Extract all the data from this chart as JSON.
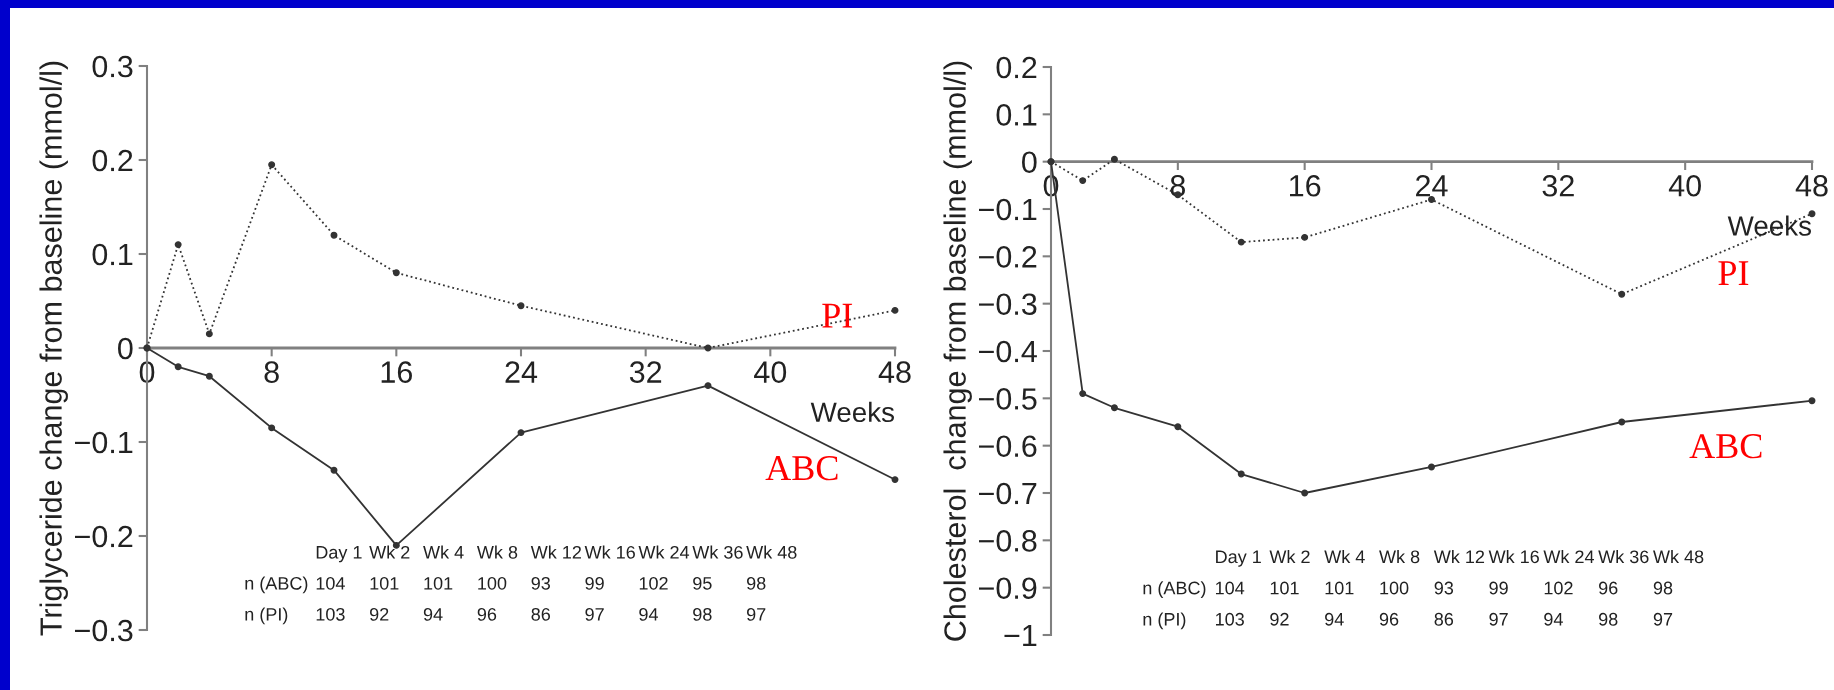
{
  "chart_data": [
    {
      "type": "line",
      "xlabel": "Weeks",
      "ylabel": "Triglyceride change from baseline (mmol/l)",
      "x": [
        0,
        2,
        4,
        8,
        12,
        16,
        24,
        36,
        48
      ],
      "xlim": [
        0,
        48
      ],
      "xticks": [
        0,
        8,
        16,
        24,
        32,
        40,
        48
      ],
      "ylim": [
        -0.3,
        0.3
      ],
      "yticks": [
        {
          "value": -0.3,
          "label": "−0.3"
        },
        {
          "value": -0.2,
          "label": "−0.2"
        },
        {
          "value": -0.1,
          "label": "−0.1"
        },
        0,
        0.1,
        0.2,
        0.3
      ],
      "marker": "circle",
      "grid": false,
      "legend": false,
      "series": [
        {
          "name": "PI",
          "color": "#333333",
          "line_style": "dotted",
          "values": [
            0,
            0.11,
            0.015,
            0.195,
            0.12,
            0.08,
            0.045,
            0,
            0.04
          ]
        },
        {
          "name": "ABC",
          "color": "#333333",
          "line_style": "solid",
          "values": [
            0,
            -0.02,
            -0.03,
            -0.085,
            -0.13,
            -0.21,
            -0.09,
            -0.04,
            -0.14
          ]
        }
      ],
      "annotations": [
        "Day 1",
        "Wk 2",
        "Wk 4",
        "Wk 8",
        "Wk 12",
        "Wk 16",
        "Wk 24",
        "Wk 36",
        "Wk 48",
        "n (ABC)",
        "104",
        "101",
        "101",
        "100",
        "93",
        "99",
        "102",
        "95",
        "98",
        "n (PI)",
        "103",
        "92",
        "94",
        "96",
        "86",
        "97",
        "94",
        "98",
        "97"
      ]
    },
    {
      "type": "line",
      "xlabel": "Weeks",
      "ylabel": "Cholesterol  change from baseline (mmol/l)",
      "x": [
        0,
        2,
        4,
        8,
        12,
        16,
        24,
        36,
        48
      ],
      "xlim": [
        0,
        48
      ],
      "xticks": [
        0,
        8,
        16,
        24,
        32,
        40,
        48
      ],
      "ylim": [
        -1,
        0.2
      ],
      "yticks": [
        {
          "value": -1,
          "label": "−1"
        },
        {
          "value": -0.9,
          "label": "−0.9"
        },
        {
          "value": -0.8,
          "label": "−0.8"
        },
        {
          "value": -0.7,
          "label": "−0.7"
        },
        {
          "value": -0.6,
          "label": "−0.6"
        },
        {
          "value": -0.5,
          "label": "−0.5"
        },
        {
          "value": -0.4,
          "label": "−0.4"
        },
        {
          "value": -0.3,
          "label": "−0.3"
        },
        {
          "value": -0.2,
          "label": "−0.2"
        },
        {
          "value": -0.1,
          "label": "−0.1"
        },
        0,
        0.1,
        0.2
      ],
      "marker": "circle",
      "grid": false,
      "legend": false,
      "series": [
        {
          "name": "PI",
          "color": "#333333",
          "line_style": "dotted",
          "values": [
            0,
            -0.04,
            0.005,
            -0.07,
            -0.17,
            -0.16,
            -0.08,
            -0.28,
            -0.11
          ]
        },
        {
          "name": "ABC",
          "color": "#333333",
          "line_style": "solid",
          "values": [
            0,
            -0.49,
            -0.52,
            -0.56,
            -0.66,
            -0.7,
            -0.645,
            -0.55,
            -0.505
          ]
        }
      ],
      "annotations": [
        "Day 1",
        "Wk 2",
        "Wk 4",
        "Wk 8",
        "Wk 12",
        "Wk 16",
        "Wk 24",
        "Wk 36",
        "Wk 48",
        "n (ABC)",
        "104",
        "101",
        "101",
        "100",
        "93",
        "99",
        "102",
        "96",
        "98",
        "n (PI)",
        "103",
        "92",
        "94",
        "96",
        "86",
        "97",
        "94",
        "98",
        "97"
      ]
    }
  ]
}
